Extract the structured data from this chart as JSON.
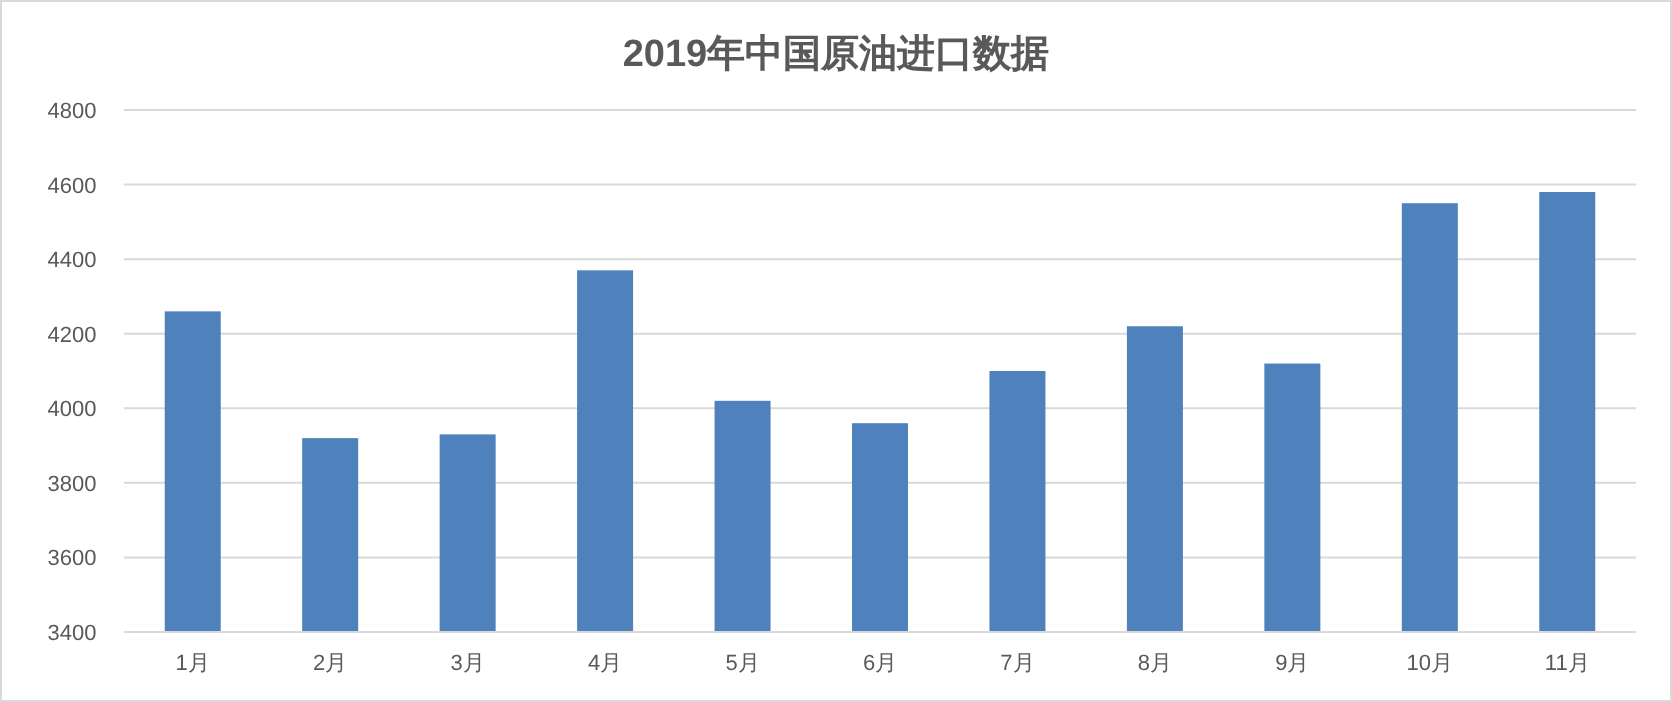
{
  "chart_data": {
    "type": "bar",
    "title": "2019年中国原油进口数据",
    "categories": [
      "1月",
      "2月",
      "3月",
      "4月",
      "5月",
      "6月",
      "7月",
      "8月",
      "9月",
      "10月",
      "11月"
    ],
    "values": [
      4260,
      3920,
      3930,
      4370,
      4020,
      3960,
      4100,
      4220,
      4120,
      4550,
      4580
    ],
    "color": "#4f81bd",
    "ylim": [
      3400,
      4800
    ],
    "yticks": [
      3400,
      3600,
      3800,
      4000,
      4200,
      4400,
      4600,
      4800
    ],
    "grid": "y"
  }
}
